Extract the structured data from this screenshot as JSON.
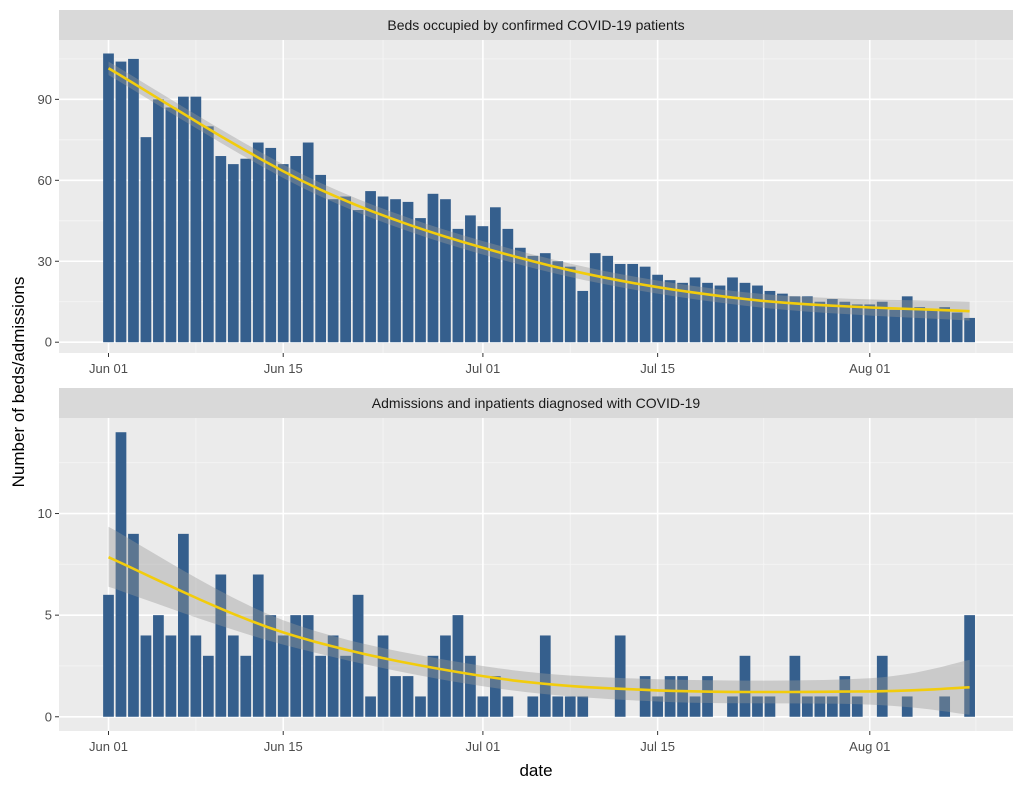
{
  "chart_data": [
    {
      "type": "bar",
      "title": "Beds occupied by confirmed COVID-19 patients",
      "xlabel": "date",
      "ylabel": "Number of beds/admissions",
      "x_start": "2020-06-01",
      "x_tick_labels": [
        "Jun 01",
        "Jun 15",
        "Jul 01",
        "Jul 15",
        "Aug 01"
      ],
      "x_tick_days": [
        0,
        14,
        30,
        44,
        61
      ],
      "y_tick_labels": [
        "0",
        "30",
        "60",
        "90"
      ],
      "y_ticks": [
        0,
        30,
        60,
        90
      ],
      "ylim": [
        -4,
        112
      ],
      "values": [
        107,
        104,
        105,
        76,
        90,
        87,
        91,
        91,
        80,
        69,
        66,
        68,
        74,
        72,
        66,
        69,
        74,
        62,
        53,
        54,
        49,
        56,
        54,
        53,
        52,
        46,
        55,
        53,
        42,
        47,
        43,
        50,
        42,
        35,
        32,
        33,
        30,
        28,
        19,
        33,
        32,
        29,
        29,
        28,
        25,
        23,
        22,
        24,
        22,
        21,
        24,
        22,
        21,
        19,
        18,
        17,
        17,
        15,
        16,
        15,
        14,
        14,
        15,
        12,
        17,
        13,
        12,
        13,
        11,
        9
      ],
      "smooth": {
        "color": "#f2cc0c",
        "fit": [
          101.5,
          56.5,
          30,
          16,
          11.5
        ],
        "lower": [
          99,
          54,
          27.5,
          13.5,
          8
        ],
        "upper": [
          104,
          59,
          32.5,
          18.5,
          15
        ],
        "knot_days": [
          0,
          17,
          34,
          51,
          69
        ]
      },
      "bar_color": "#355f8d"
    },
    {
      "type": "bar",
      "title": "Admissions and inpatients diagnosed with COVID-19",
      "xlabel": "date",
      "ylabel": "Number of beds/admissions",
      "x_start": "2020-06-01",
      "x_tick_labels": [
        "Jun 01",
        "Jun 15",
        "Jul 01",
        "Jul 15",
        "Aug 01"
      ],
      "x_tick_days": [
        0,
        14,
        30,
        44,
        61
      ],
      "y_tick_labels": [
        "0",
        "5",
        "10"
      ],
      "y_ticks": [
        0,
        5,
        10
      ],
      "ylim": [
        -0.7,
        14.7
      ],
      "values": [
        6,
        14,
        9,
        4,
        5,
        4,
        9,
        4,
        3,
        7,
        4,
        3,
        7,
        5,
        4,
        5,
        5,
        3,
        4,
        3,
        6,
        1,
        4,
        2,
        2,
        1,
        3,
        4,
        5,
        3,
        1,
        2,
        1,
        0,
        1,
        4,
        1,
        1,
        1,
        0,
        0,
        4,
        0,
        2,
        1,
        2,
        2,
        1,
        2,
        0,
        1,
        3,
        1,
        1,
        0,
        3,
        1,
        1,
        1,
        2,
        1,
        0,
        3,
        0,
        1,
        0,
        0,
        1,
        0,
        5
      ],
      "smooth": {
        "color": "#f2cc0c",
        "fit": [
          7.85,
          4.15,
          2.0,
          1.3,
          1.25,
          1.45
        ],
        "lower": [
          6.4,
          3.55,
          1.5,
          0.75,
          0.6,
          0.1
        ],
        "upper": [
          9.35,
          4.75,
          2.5,
          1.85,
          1.9,
          2.8
        ],
        "knot_days": [
          0,
          14,
          30,
          44,
          61,
          69
        ]
      },
      "bar_color": "#355f8d"
    }
  ]
}
